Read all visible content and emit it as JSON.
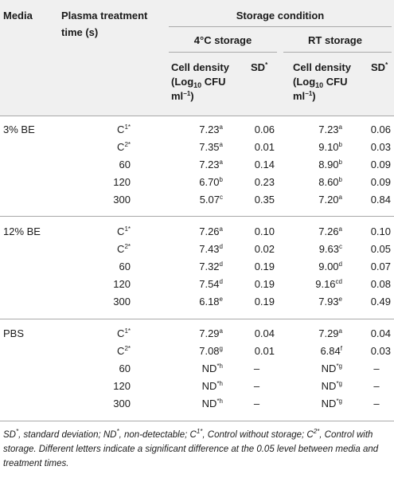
{
  "header": {
    "media": "Media",
    "plasma_line1": "Plasma treatment",
    "plasma_line2": "time (s)",
    "storage_condition": "Storage condition",
    "cold_storage": "4°C storage",
    "rt_storage": "RT storage",
    "cell_density_line1": "Cell density",
    "cell_density_log": "(Log",
    "cell_density_log_sub": "10",
    "cell_density_cfu": " CFU",
    "cell_density_line3": "ml",
    "cell_density_line3_sup": "−1",
    "cell_density_line3_end": ")",
    "sd": "SD",
    "star": "*"
  },
  "groups": [
    {
      "media": "3% BE",
      "rows": [
        {
          "time": "C",
          "time_sup": "1*",
          "d4": "7.23",
          "d4_sup": "a",
          "sd4": "0.06",
          "drt": "7.23",
          "drt_sup": "a",
          "sdrt": "0.06"
        },
        {
          "time": "C",
          "time_sup": "2*",
          "d4": "7.35",
          "d4_sup": "a",
          "sd4": "0.01",
          "drt": "9.10",
          "drt_sup": "b",
          "sdrt": "0.03"
        },
        {
          "time": "60",
          "time_sup": "",
          "d4": "7.23",
          "d4_sup": "a",
          "sd4": "0.14",
          "drt": "8.90",
          "drt_sup": "b",
          "sdrt": "0.09"
        },
        {
          "time": "120",
          "time_sup": "",
          "d4": "6.70",
          "d4_sup": "b",
          "sd4": "0.23",
          "drt": "8.60",
          "drt_sup": "b",
          "sdrt": "0.09"
        },
        {
          "time": "300",
          "time_sup": "",
          "d4": "5.07",
          "d4_sup": "c",
          "sd4": "0.35",
          "drt": "7.20",
          "drt_sup": "a",
          "sdrt": "0.84"
        }
      ]
    },
    {
      "media": "12% BE",
      "rows": [
        {
          "time": "C",
          "time_sup": "1*",
          "d4": "7.26",
          "d4_sup": "a",
          "sd4": "0.10",
          "drt": "7.26",
          "drt_sup": "a",
          "sdrt": "0.10"
        },
        {
          "time": "C",
          "time_sup": "2*",
          "d4": "7.43",
          "d4_sup": "d",
          "sd4": "0.02",
          "drt": "9.63",
          "drt_sup": "c",
          "sdrt": "0.05"
        },
        {
          "time": "60",
          "time_sup": "",
          "d4": "7.32",
          "d4_sup": "d",
          "sd4": "0.19",
          "drt": "9.00",
          "drt_sup": "d",
          "sdrt": "0.07"
        },
        {
          "time": "120",
          "time_sup": "",
          "d4": "7.54",
          "d4_sup": "d",
          "sd4": "0.19",
          "drt": "9.16",
          "drt_sup": "cd",
          "sdrt": "0.08"
        },
        {
          "time": "300",
          "time_sup": "",
          "d4": "6.18",
          "d4_sup": "e",
          "sd4": "0.19",
          "drt": "7.93",
          "drt_sup": "e",
          "sdrt": "0.49"
        }
      ]
    },
    {
      "media": "PBS",
      "rows": [
        {
          "time": "C",
          "time_sup": "1*",
          "d4": "7.29",
          "d4_sup": "a",
          "sd4": "0.04",
          "drt": "7.29",
          "drt_sup": "a",
          "sdrt": "0.04"
        },
        {
          "time": "C",
          "time_sup": "2*",
          "d4": "7.08",
          "d4_sup": "g",
          "sd4": "0.01",
          "drt": "6.84",
          "drt_sup": "f",
          "sdrt": "0.03"
        },
        {
          "time": "60",
          "time_sup": "",
          "d4": "ND",
          "d4_sup": "*h",
          "sd4": "–",
          "drt": "ND",
          "drt_sup": "*g",
          "sdrt": "–"
        },
        {
          "time": "120",
          "time_sup": "",
          "d4": "ND",
          "d4_sup": "*h",
          "sd4": "–",
          "drt": "ND",
          "drt_sup": "*g",
          "sdrt": "–"
        },
        {
          "time": "300",
          "time_sup": "",
          "d4": "ND",
          "d4_sup": "*h",
          "sd4": "–",
          "drt": "ND",
          "drt_sup": "*g",
          "sdrt": "–"
        }
      ]
    }
  ],
  "footnote": {
    "sd_abbr": "SD",
    "sd_def": ", standard deviation; ",
    "nd_abbr": "ND",
    "nd_def": ", non-detectable; ",
    "c1_abbr": "C",
    "c1_sup": "1*",
    "c1_def": ", Control without storage; ",
    "c2_abbr": "C",
    "c2_sup": "2*",
    "c2_def": ", Control with storage. Different letters indicate a significant difference at the 0.05 level between media and treatment times."
  }
}
